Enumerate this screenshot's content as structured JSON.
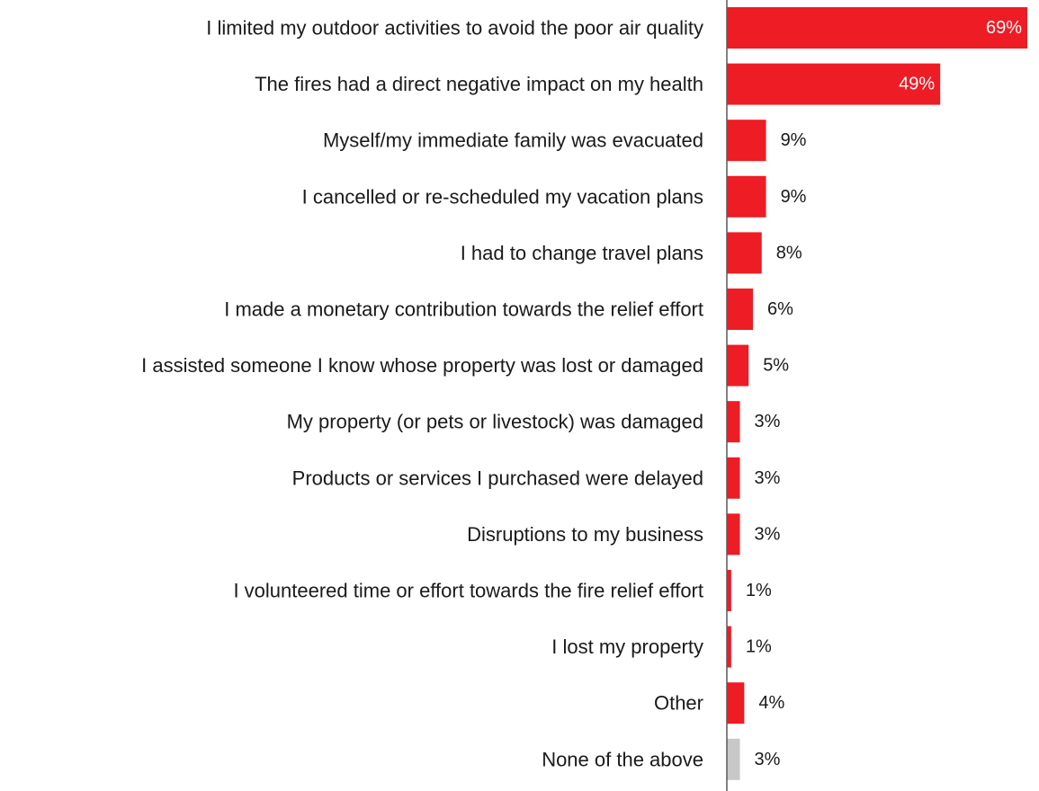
{
  "chart_data": {
    "type": "bar",
    "orientation": "horizontal",
    "value_suffix": "%",
    "categories": [
      "I limited my outdoor activities to avoid the poor air quality",
      "The fires had a direct negative impact on my health",
      "Myself/my immediate family was evacuated",
      "I cancelled or re-scheduled my vacation plans",
      "I had to change travel plans",
      "I made a monetary contribution towards the relief effort",
      "I assisted someone I know whose property was lost or damaged",
      "My property (or pets or livestock) was damaged",
      "Products or services I purchased were delayed",
      "Disruptions to my business",
      "I volunteered time or effort towards the fire relief effort",
      "I lost my property",
      "Other",
      "None of the above"
    ],
    "values": [
      69,
      49,
      9,
      9,
      8,
      6,
      5,
      3,
      3,
      3,
      1,
      1,
      4,
      3
    ],
    "value_labels": [
      "69%",
      "49%",
      "9%",
      "9%",
      "8%",
      "6%",
      "5%",
      "3%",
      "3%",
      "3%",
      "1%",
      "1%",
      "4%",
      "3%"
    ],
    "bar_colors": [
      "#ee1c25",
      "#ee1c25",
      "#ee1c25",
      "#ee1c25",
      "#ee1c25",
      "#ee1c25",
      "#ee1c25",
      "#ee1c25",
      "#ee1c25",
      "#ee1c25",
      "#ee1c25",
      "#ee1c25",
      "#ee1c25",
      "#c8c8c8"
    ],
    "inside_label_color": "#ffffff",
    "outside_label_color": "#1a1a1a",
    "axis_color": "#595959",
    "xlim": [
      0,
      69
    ],
    "grid": false,
    "legend": "none"
  }
}
